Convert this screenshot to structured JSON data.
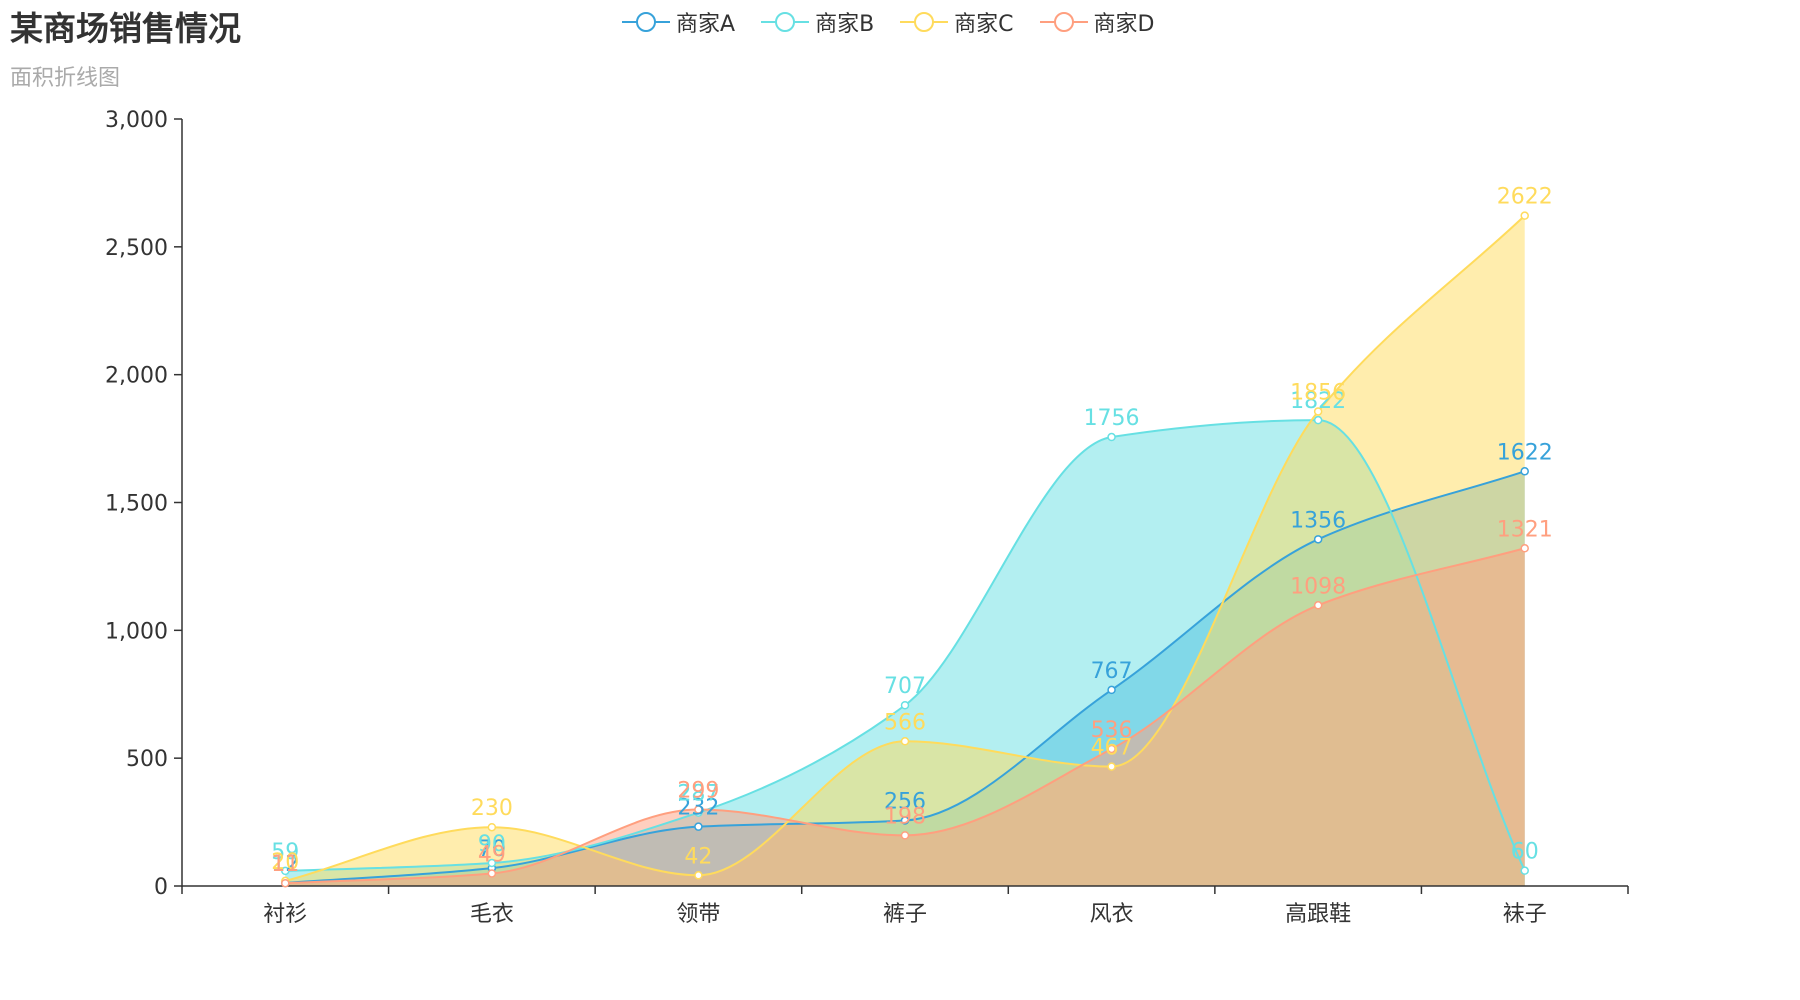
{
  "chart_data": {
    "type": "area",
    "title": "某商场销售情况",
    "subtitle": "面积折线图",
    "categories": [
      "衬衫",
      "毛衣",
      "领带",
      "裤子",
      "风衣",
      "高跟鞋",
      "袜子"
    ],
    "ylim": [
      0,
      3000
    ],
    "yticks": [
      0,
      500,
      1000,
      1500,
      2000,
      2500,
      3000
    ],
    "ytick_labels": [
      "0",
      "500",
      "1,000",
      "1,500",
      "2,000",
      "2,500",
      "3,000"
    ],
    "smooth": true,
    "legend_position": "top-center",
    "series": [
      {
        "name": "商家A",
        "color": "#37A2DA",
        "values": [
          12,
          70,
          232,
          256,
          767,
          1356,
          1622
        ]
      },
      {
        "name": "商家B",
        "color": "#67E0E3",
        "values": [
          59,
          90,
          287,
          707,
          1756,
          1822,
          60
        ]
      },
      {
        "name": "商家C",
        "color": "#FFDB5C",
        "values": [
          20,
          230,
          42,
          566,
          467,
          1856,
          2622
        ]
      },
      {
        "name": "商家D",
        "color": "#FF9F7F",
        "values": [
          11,
          49,
          299,
          198,
          536,
          1098,
          1321
        ]
      }
    ]
  }
}
